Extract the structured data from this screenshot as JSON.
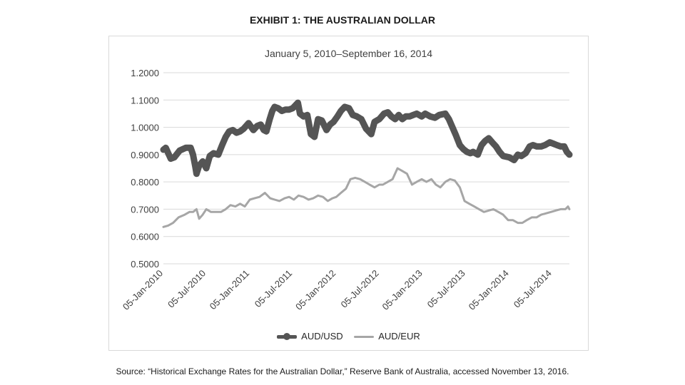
{
  "page": {
    "title": "EXHIBIT 1: THE AUSTRALIAN DOLLAR",
    "source": "Source: “Historical Exchange Rates for the Australian Dollar,” Reserve Bank of Australia, accessed November 13, 2016."
  },
  "chart_data": {
    "type": "line",
    "subtitle": "January 5, 2010–September 16, 2014",
    "x_date_range": [
      "2010-01-05",
      "2014-09-16"
    ],
    "x_tick_labels": [
      "05-Jan-2010",
      "05-Jul-2010",
      "05-Jan-2011",
      "05-Jul-2011",
      "05-Jan-2012",
      "05-Jul-2012",
      "05-Jan-2013",
      "05-Jul-2013",
      "05-Jan-2014",
      "05-Jul-2014"
    ],
    "x_ticks": [
      "2010-01-05",
      "2010-07-05",
      "2011-01-05",
      "2011-07-05",
      "2012-01-05",
      "2012-07-05",
      "2013-01-05",
      "2013-07-05",
      "2014-01-05",
      "2014-07-05"
    ],
    "ylim": [
      0.5,
      1.2
    ],
    "y_tick_labels": [
      "1.2000",
      "1.1000",
      "1.0000",
      "0.9000",
      "0.8000",
      "0.7000",
      "0.6000",
      "0.5000"
    ],
    "y_ticks": [
      1.2,
      1.1,
      1.0,
      0.9,
      0.8,
      0.7,
      0.6,
      0.5
    ],
    "grid": "horizontal",
    "legend_position": "bottom",
    "series": [
      {
        "name": "AUD/USD",
        "color": "#555555",
        "x": [
          "2010-01-05",
          "2010-01-15",
          "2010-02-05",
          "2010-02-20",
          "2010-03-15",
          "2010-04-10",
          "2010-04-30",
          "2010-05-10",
          "2010-05-20",
          "2010-05-25",
          "2010-06-05",
          "2010-06-20",
          "2010-07-05",
          "2010-07-20",
          "2010-08-05",
          "2010-08-25",
          "2010-09-10",
          "2010-09-25",
          "2010-10-10",
          "2010-10-25",
          "2010-11-10",
          "2010-11-25",
          "2010-12-10",
          "2010-12-31",
          "2011-01-20",
          "2011-02-05",
          "2011-02-20",
          "2011-03-05",
          "2011-03-16",
          "2011-03-30",
          "2011-04-10",
          "2011-04-20",
          "2011-05-05",
          "2011-05-20",
          "2011-06-05",
          "2011-06-20",
          "2011-07-05",
          "2011-07-27",
          "2011-08-05",
          "2011-08-20",
          "2011-09-05",
          "2011-09-20",
          "2011-10-05",
          "2011-10-20",
          "2011-11-05",
          "2011-11-25",
          "2011-12-10",
          "2011-12-25",
          "2012-01-10",
          "2012-01-25",
          "2012-02-10",
          "2012-02-28",
          "2012-03-15",
          "2012-04-01",
          "2012-04-20",
          "2012-05-10",
          "2012-06-01",
          "2012-06-15",
          "2012-07-05",
          "2012-07-25",
          "2012-08-10",
          "2012-08-25",
          "2012-09-10",
          "2012-09-25",
          "2012-10-10",
          "2012-10-25",
          "2012-11-10",
          "2012-11-25",
          "2012-12-10",
          "2012-12-31",
          "2013-01-15",
          "2013-02-05",
          "2013-02-25",
          "2013-03-15",
          "2013-04-10",
          "2013-04-25",
          "2013-05-10",
          "2013-05-25",
          "2013-06-10",
          "2013-06-25",
          "2013-07-10",
          "2013-07-25",
          "2013-08-05",
          "2013-08-25",
          "2013-09-10",
          "2013-09-25",
          "2013-10-10",
          "2013-10-25",
          "2013-11-10",
          "2013-11-25",
          "2013-12-10",
          "2014-01-05",
          "2014-01-25",
          "2014-02-10",
          "2014-02-25",
          "2014-03-15",
          "2014-04-01",
          "2014-04-15",
          "2014-05-01",
          "2014-05-20",
          "2014-06-05",
          "2014-06-25",
          "2014-07-10",
          "2014-07-25",
          "2014-08-10",
          "2014-08-25",
          "2014-09-05",
          "2014-09-16"
        ],
        "values": [
          0.918,
          0.925,
          0.885,
          0.89,
          0.915,
          0.925,
          0.925,
          0.9,
          0.855,
          0.83,
          0.86,
          0.875,
          0.85,
          0.895,
          0.905,
          0.9,
          0.935,
          0.965,
          0.985,
          0.99,
          0.98,
          0.985,
          0.995,
          1.015,
          0.99,
          1.005,
          1.01,
          0.99,
          0.985,
          1.03,
          1.06,
          1.075,
          1.07,
          1.06,
          1.065,
          1.065,
          1.07,
          1.09,
          1.05,
          1.04,
          1.045,
          0.975,
          0.965,
          1.03,
          1.025,
          0.99,
          1.01,
          1.02,
          1.04,
          1.06,
          1.075,
          1.07,
          1.045,
          1.04,
          1.03,
          0.995,
          0.975,
          1.02,
          1.03,
          1.05,
          1.055,
          1.04,
          1.03,
          1.045,
          1.03,
          1.04,
          1.04,
          1.045,
          1.05,
          1.04,
          1.05,
          1.04,
          1.035,
          1.045,
          1.05,
          1.03,
          1.0,
          0.97,
          0.935,
          0.92,
          0.91,
          0.905,
          0.91,
          0.9,
          0.935,
          0.95,
          0.96,
          0.945,
          0.93,
          0.91,
          0.895,
          0.89,
          0.88,
          0.9,
          0.895,
          0.905,
          0.93,
          0.935,
          0.93,
          0.93,
          0.935,
          0.945,
          0.94,
          0.935,
          0.93,
          0.93,
          0.91,
          0.9
        ]
      },
      {
        "name": "AUD/EUR",
        "color": "#a6a6a6",
        "x": [
          "2010-01-05",
          "2010-01-25",
          "2010-02-15",
          "2010-03-10",
          "2010-04-05",
          "2010-04-25",
          "2010-05-10",
          "2010-05-25",
          "2010-06-05",
          "2010-06-20",
          "2010-07-05",
          "2010-07-25",
          "2010-08-15",
          "2010-09-05",
          "2010-09-25",
          "2010-10-15",
          "2010-11-05",
          "2010-11-25",
          "2010-12-15",
          "2011-01-05",
          "2011-01-25",
          "2011-02-15",
          "2011-03-10",
          "2011-04-01",
          "2011-04-20",
          "2011-05-10",
          "2011-06-01",
          "2011-06-20",
          "2011-07-10",
          "2011-07-30",
          "2011-08-20",
          "2011-09-10",
          "2011-09-30",
          "2011-10-20",
          "2011-11-10",
          "2011-11-30",
          "2011-12-20",
          "2012-01-05",
          "2012-01-25",
          "2012-02-15",
          "2012-03-05",
          "2012-03-25",
          "2012-04-15",
          "2012-05-05",
          "2012-05-25",
          "2012-06-15",
          "2012-07-05",
          "2012-07-20",
          "2012-08-10",
          "2012-08-30",
          "2012-09-20",
          "2012-10-10",
          "2012-10-30",
          "2012-11-20",
          "2012-12-10",
          "2012-12-31",
          "2013-01-20",
          "2013-02-10",
          "2013-03-01",
          "2013-03-20",
          "2013-04-10",
          "2013-04-30",
          "2013-05-20",
          "2013-06-10",
          "2013-06-30",
          "2013-07-20",
          "2013-08-10",
          "2013-08-30",
          "2013-09-20",
          "2013-10-10",
          "2013-10-30",
          "2013-11-20",
          "2013-12-10",
          "2013-12-31",
          "2014-01-20",
          "2014-02-10",
          "2014-03-01",
          "2014-03-20",
          "2014-04-10",
          "2014-04-30",
          "2014-05-20",
          "2014-06-10",
          "2014-06-30",
          "2014-07-20",
          "2014-08-10",
          "2014-08-30",
          "2014-09-10",
          "2014-09-16"
        ],
        "values": [
          0.635,
          0.64,
          0.65,
          0.67,
          0.68,
          0.69,
          0.69,
          0.7,
          0.665,
          0.68,
          0.7,
          0.69,
          0.69,
          0.69,
          0.7,
          0.715,
          0.71,
          0.72,
          0.71,
          0.735,
          0.74,
          0.745,
          0.76,
          0.74,
          0.735,
          0.73,
          0.74,
          0.745,
          0.735,
          0.75,
          0.745,
          0.735,
          0.74,
          0.75,
          0.745,
          0.73,
          0.74,
          0.745,
          0.76,
          0.775,
          0.81,
          0.815,
          0.81,
          0.8,
          0.79,
          0.78,
          0.79,
          0.79,
          0.8,
          0.81,
          0.85,
          0.84,
          0.83,
          0.79,
          0.8,
          0.81,
          0.8,
          0.81,
          0.79,
          0.78,
          0.8,
          0.81,
          0.805,
          0.78,
          0.73,
          0.72,
          0.71,
          0.7,
          0.69,
          0.695,
          0.7,
          0.69,
          0.68,
          0.66,
          0.66,
          0.65,
          0.65,
          0.66,
          0.67,
          0.67,
          0.68,
          0.685,
          0.69,
          0.695,
          0.7,
          0.7,
          0.71,
          0.7
        ]
      }
    ]
  }
}
